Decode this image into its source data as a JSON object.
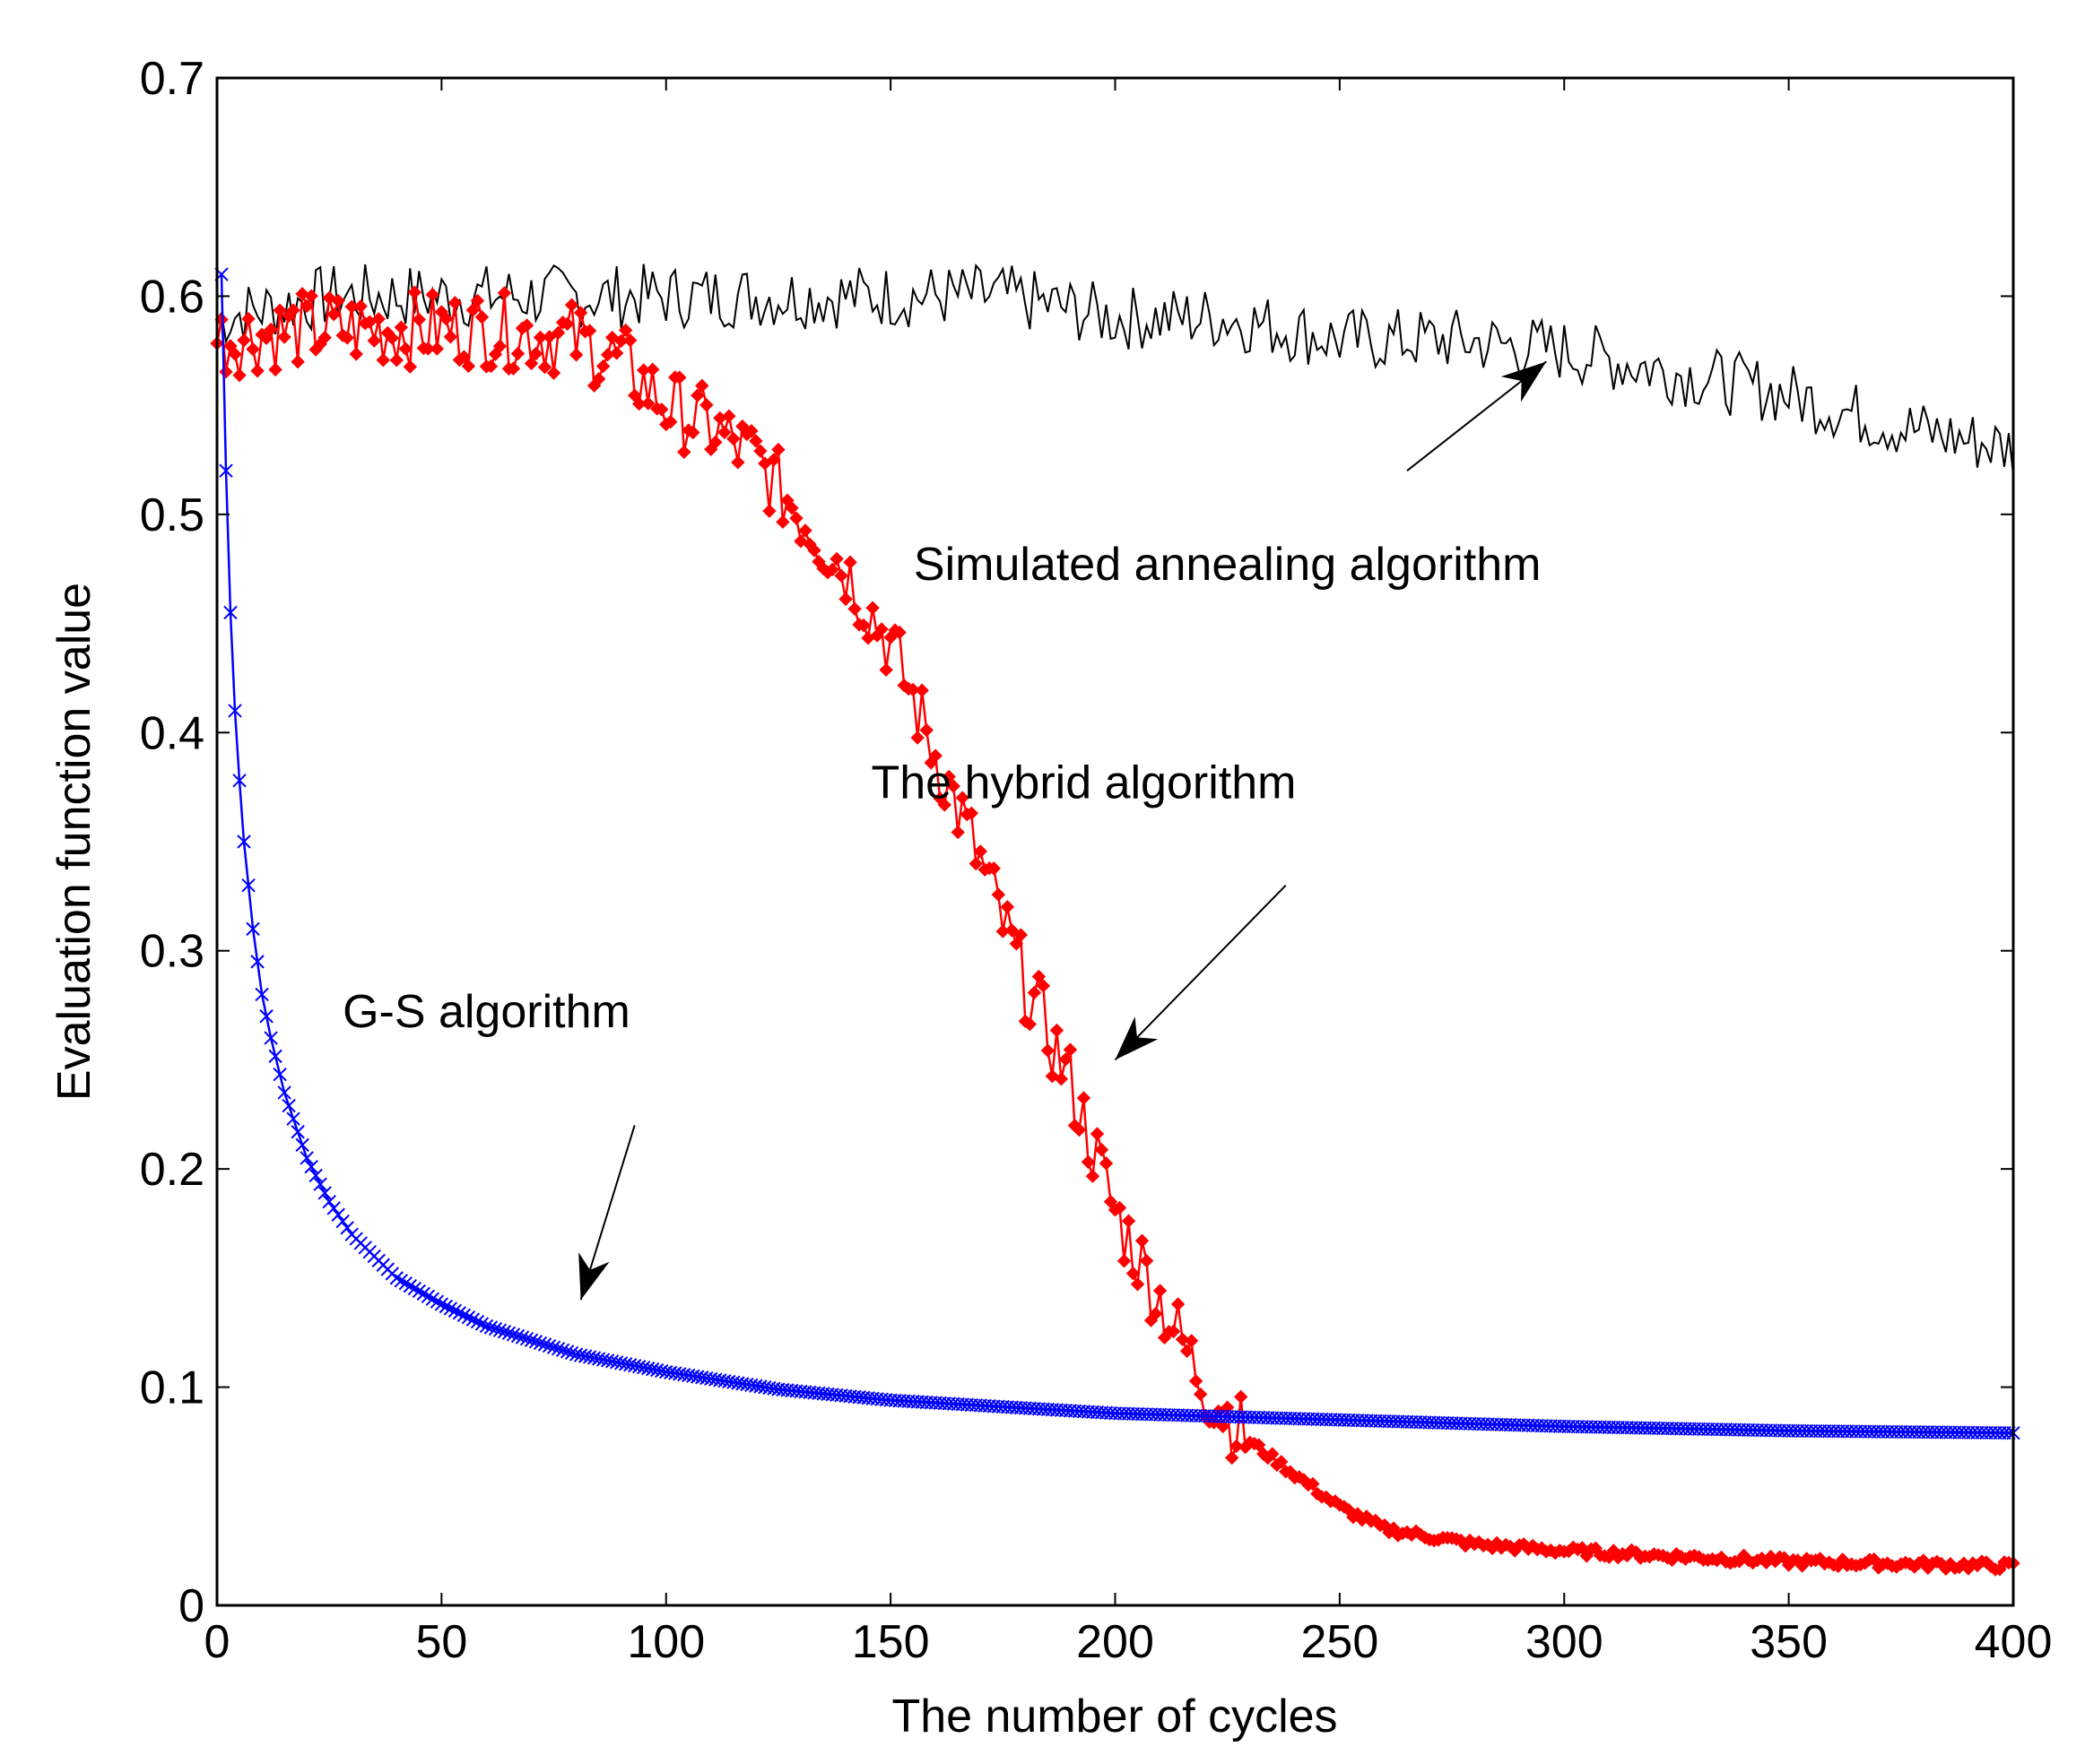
{
  "chart_data": {
    "type": "line",
    "title": "",
    "xlabel": "The number of cycles",
    "ylabel": "Evaluation function value",
    "xlim": [
      0,
      400
    ],
    "ylim": [
      0,
      0.7
    ],
    "xticks": [
      0,
      50,
      100,
      150,
      200,
      250,
      300,
      350,
      400
    ],
    "xtick_labels": [
      "0",
      "50",
      "100",
      "150",
      "200",
      "250",
      "300",
      "350",
      "400"
    ],
    "yticks": [
      0,
      0.1,
      0.2,
      0.3,
      0.4,
      0.5,
      0.6,
      0.7
    ],
    "ytick_labels": [
      "0",
      "0.1",
      "0.2",
      "0.3",
      "0.4",
      "0.5",
      "0.6",
      "0.7"
    ],
    "grid": false,
    "series": [
      {
        "name": "Simulated annealing algorithm",
        "color": "#000000",
        "marker": "none",
        "x": [
          0,
          25,
          50,
          75,
          100,
          125,
          150,
          175,
          200,
          225,
          250,
          275,
          300,
          325,
          350,
          375,
          400
        ],
        "y": [
          0.59,
          0.6,
          0.6,
          0.6,
          0.6,
          0.6,
          0.6,
          0.6,
          0.59,
          0.59,
          0.58,
          0.58,
          0.575,
          0.565,
          0.555,
          0.54,
          0.53
        ]
      },
      {
        "name": "The hybrid algorithm",
        "color": "#ff0000",
        "marker": "diamond",
        "x": [
          0,
          20,
          40,
          60,
          80,
          90,
          100,
          110,
          120,
          130,
          140,
          150,
          160,
          170,
          180,
          190,
          200,
          210,
          220,
          230,
          240,
          250,
          260,
          280,
          300,
          350,
          400
        ],
        "y": [
          0.58,
          0.585,
          0.585,
          0.585,
          0.58,
          0.57,
          0.55,
          0.54,
          0.525,
          0.5,
          0.475,
          0.44,
          0.39,
          0.34,
          0.285,
          0.24,
          0.18,
          0.14,
          0.1,
          0.075,
          0.06,
          0.045,
          0.035,
          0.028,
          0.025,
          0.02,
          0.018
        ]
      },
      {
        "name": "G-S algorithm",
        "color": "#0000ff",
        "marker": "x",
        "x": [
          1,
          2,
          3,
          4,
          5,
          6,
          8,
          10,
          12,
          15,
          20,
          25,
          30,
          40,
          50,
          60,
          80,
          100,
          125,
          150,
          200,
          250,
          300,
          350,
          400
        ],
        "y": [
          0.61,
          0.52,
          0.455,
          0.41,
          0.378,
          0.35,
          0.31,
          0.28,
          0.26,
          0.235,
          0.205,
          0.185,
          0.17,
          0.15,
          0.138,
          0.128,
          0.115,
          0.107,
          0.099,
          0.094,
          0.088,
          0.085,
          0.082,
          0.08,
          0.079
        ]
      }
    ],
    "annotations": [
      {
        "text": "Simulated annealing algorithm",
        "series": "Simulated annealing algorithm",
        "x": 225,
        "y": 0.47,
        "arrow_from": [
          265,
          0.52
        ],
        "arrow_to": [
          296,
          0.57
        ]
      },
      {
        "text": "The hybrid algorithm",
        "series": "The hybrid algorithm",
        "x": 193,
        "y": 0.37,
        "arrow_from": [
          238,
          0.33
        ],
        "arrow_to": [
          200,
          0.25
        ]
      },
      {
        "text": "G-S algorithm",
        "series": "G-S algorithm",
        "x": 60,
        "y": 0.265,
        "arrow_from": [
          93,
          0.22
        ],
        "arrow_to": [
          81,
          0.14
        ]
      }
    ]
  }
}
